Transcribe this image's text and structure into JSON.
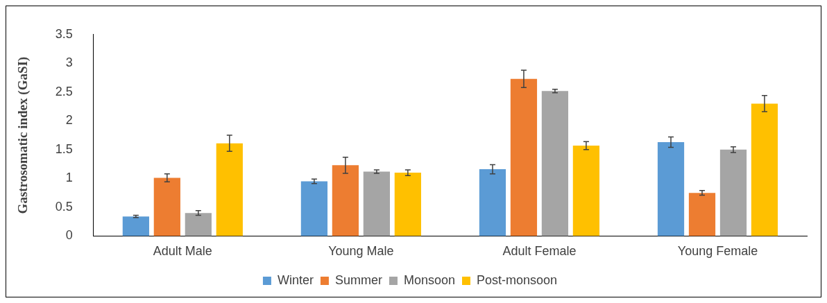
{
  "chart_data": {
    "type": "bar",
    "ylabel": "Gastrosomatic index (GaSI)",
    "categories": [
      "Adult Male",
      "Young Male",
      "Adult Female",
      "Young Female"
    ],
    "series": [
      {
        "name": "Winter",
        "color": "#5b9bd5",
        "values": [
          0.34,
          0.95,
          1.16,
          1.63
        ],
        "errors": [
          0.02,
          0.04,
          0.08,
          0.09
        ]
      },
      {
        "name": "Summer",
        "color": "#ed7d31",
        "values": [
          1.01,
          1.23,
          2.73,
          0.75
        ],
        "errors": [
          0.07,
          0.14,
          0.15,
          0.04
        ]
      },
      {
        "name": "Monsoon",
        "color": "#a5a5a5",
        "values": [
          0.4,
          1.12,
          2.52,
          1.5
        ],
        "errors": [
          0.04,
          0.03,
          0.03,
          0.05
        ]
      },
      {
        "name": "Post-monsoon",
        "color": "#ffc000",
        "values": [
          1.61,
          1.1,
          1.57,
          2.3
        ],
        "errors": [
          0.14,
          0.05,
          0.07,
          0.14
        ]
      }
    ],
    "ylim": [
      0,
      3.5
    ],
    "yticks": [
      0,
      0.5,
      1,
      1.5,
      2,
      2.5,
      3,
      3.5
    ],
    "grid": false,
    "legend": "bottom"
  }
}
